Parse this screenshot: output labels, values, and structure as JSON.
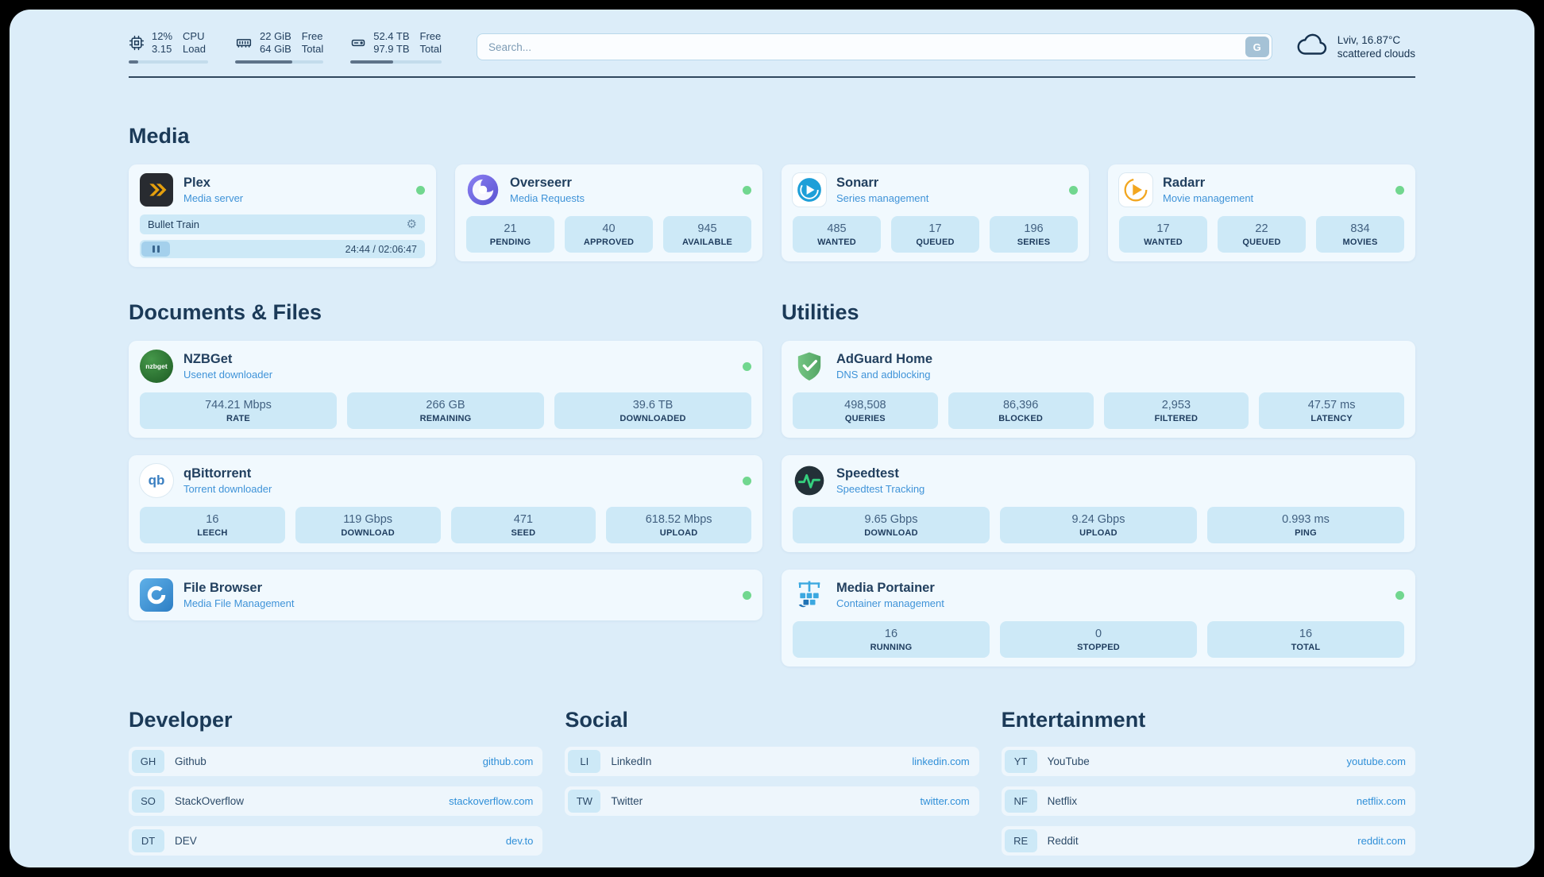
{
  "colors": {
    "page_bg": "#dcedf9",
    "stat_bg": "#cde9f7",
    "status_online": "#71d78f",
    "accent_link": "#2f8fd8"
  },
  "icons": {
    "gear": "⚙"
  },
  "topbar": {
    "cpu": {
      "value": "12%",
      "sub": "3.15",
      "label_top": "CPU",
      "label_bottom": "Load",
      "bar": "12%"
    },
    "ram": {
      "value": "22 GiB",
      "sub": "64 GiB",
      "label_top": "Free",
      "label_bottom": "Total",
      "bar": "65%"
    },
    "disk": {
      "value": "52.4 TB",
      "sub": "97.9 TB",
      "label_top": "Free",
      "label_bottom": "Total",
      "bar": "47%"
    },
    "search": {
      "placeholder": "Search...",
      "button_label": "G"
    },
    "weather": {
      "location": "Lviv, 16.87°C",
      "condition": "scattered clouds"
    }
  },
  "media": {
    "title": "Media",
    "plex": {
      "title": "Plex",
      "subtitle": "Media server",
      "online": true,
      "now_playing": "Bullet Train",
      "time": "24:44 / 02:06:47"
    },
    "overseerr": {
      "title": "Overseerr",
      "subtitle": "Media Requests",
      "online": true,
      "stats": [
        {
          "value": "21",
          "label": "PENDING"
        },
        {
          "value": "40",
          "label": "APPROVED"
        },
        {
          "value": "945",
          "label": "AVAILABLE"
        }
      ]
    },
    "sonarr": {
      "title": "Sonarr",
      "subtitle": "Series management",
      "online": true,
      "stats": [
        {
          "value": "485",
          "label": "WANTED"
        },
        {
          "value": "17",
          "label": "QUEUED"
        },
        {
          "value": "196",
          "label": "SERIES"
        }
      ]
    },
    "radarr": {
      "title": "Radarr",
      "subtitle": "Movie management",
      "online": true,
      "stats": [
        {
          "value": "17",
          "label": "WANTED"
        },
        {
          "value": "22",
          "label": "QUEUED"
        },
        {
          "value": "834",
          "label": "MOVIES"
        }
      ]
    }
  },
  "documents": {
    "title": "Documents & Files",
    "nzbget": {
      "title": "NZBGet",
      "subtitle": "Usenet downloader",
      "online": true,
      "icon_text": "nzbget",
      "stats": [
        {
          "value": "744.21 Mbps",
          "label": "RATE"
        },
        {
          "value": "266 GB",
          "label": "REMAINING"
        },
        {
          "value": "39.6 TB",
          "label": "DOWNLOADED"
        }
      ]
    },
    "qbittorrent": {
      "title": "qBittorrent",
      "subtitle": "Torrent downloader",
      "online": true,
      "icon_text": "qb",
      "stats": [
        {
          "value": "16",
          "label": "LEECH"
        },
        {
          "value": "119 Gbps",
          "label": "DOWNLOAD"
        },
        {
          "value": "471",
          "label": "SEED"
        },
        {
          "value": "618.52 Mbps",
          "label": "UPLOAD"
        }
      ]
    },
    "filebrowser": {
      "title": "File Browser",
      "subtitle": "Media File Management",
      "online": true
    }
  },
  "utilities": {
    "title": "Utilities",
    "adguard": {
      "title": "AdGuard Home",
      "subtitle": "DNS and adblocking",
      "stats": [
        {
          "value": "498,508",
          "label": "QUERIES"
        },
        {
          "value": "86,396",
          "label": "BLOCKED"
        },
        {
          "value": "2,953",
          "label": "FILTERED"
        },
        {
          "value": "47.57 ms",
          "label": "LATENCY"
        }
      ]
    },
    "speedtest": {
      "title": "Speedtest",
      "subtitle": "Speedtest Tracking",
      "stats": [
        {
          "value": "9.65 Gbps",
          "label": "DOWNLOAD"
        },
        {
          "value": "9.24 Gbps",
          "label": "UPLOAD"
        },
        {
          "value": "0.993 ms",
          "label": "PING"
        }
      ]
    },
    "portainer": {
      "title": "Media Portainer",
      "subtitle": "Container management",
      "online": true,
      "stats": [
        {
          "value": "16",
          "label": "RUNNING"
        },
        {
          "value": "0",
          "label": "STOPPED"
        },
        {
          "value": "16",
          "label": "TOTAL"
        }
      ]
    }
  },
  "bookmarks": {
    "developer": {
      "title": "Developer",
      "items": [
        {
          "abbr": "GH",
          "name": "Github",
          "url": "github.com"
        },
        {
          "abbr": "SO",
          "name": "StackOverflow",
          "url": "stackoverflow.com"
        },
        {
          "abbr": "DT",
          "name": "DEV",
          "url": "dev.to"
        }
      ]
    },
    "social": {
      "title": "Social",
      "items": [
        {
          "abbr": "LI",
          "name": "LinkedIn",
          "url": "linkedin.com"
        },
        {
          "abbr": "TW",
          "name": "Twitter",
          "url": "twitter.com"
        }
      ]
    },
    "entertainment": {
      "title": "Entertainment",
      "items": [
        {
          "abbr": "YT",
          "name": "YouTube",
          "url": "youtube.com"
        },
        {
          "abbr": "NF",
          "name": "Netflix",
          "url": "netflix.com"
        },
        {
          "abbr": "RE",
          "name": "Reddit",
          "url": "reddit.com"
        }
      ]
    }
  }
}
